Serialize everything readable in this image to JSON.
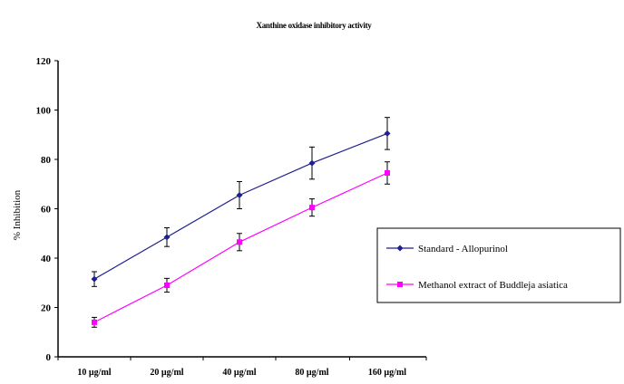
{
  "chart_data": {
    "type": "line",
    "title": "Xanthine oxidase inhibitory activity",
    "xlabel": "",
    "ylabel": "% Inhibition",
    "categories": [
      "10 µg/ml",
      "20 µg/ml",
      "40 µg/ml",
      "80 µg/ml",
      "160 µg/ml"
    ],
    "ylim": [
      0,
      120
    ],
    "yticks": [
      "0",
      "20",
      "40",
      "60",
      "80",
      "100",
      "120"
    ],
    "grid": false,
    "legend_position": "right",
    "series": [
      {
        "name": "Standard - Allopurinol",
        "color": "#1f1f8f",
        "marker": "diamond",
        "values": [
          31.5,
          48.5,
          65.5,
          78.5,
          90.5
        ],
        "errors": [
          3.0,
          3.8,
          5.5,
          6.5,
          6.5
        ]
      },
      {
        "name": "Methanol extract of Buddleja asiatica",
        "color": "#ff00ff",
        "marker": "square",
        "values": [
          14,
          29,
          46.5,
          60.5,
          74.5
        ],
        "errors": [
          2.0,
          2.8,
          3.5,
          3.5,
          4.5
        ]
      }
    ]
  }
}
